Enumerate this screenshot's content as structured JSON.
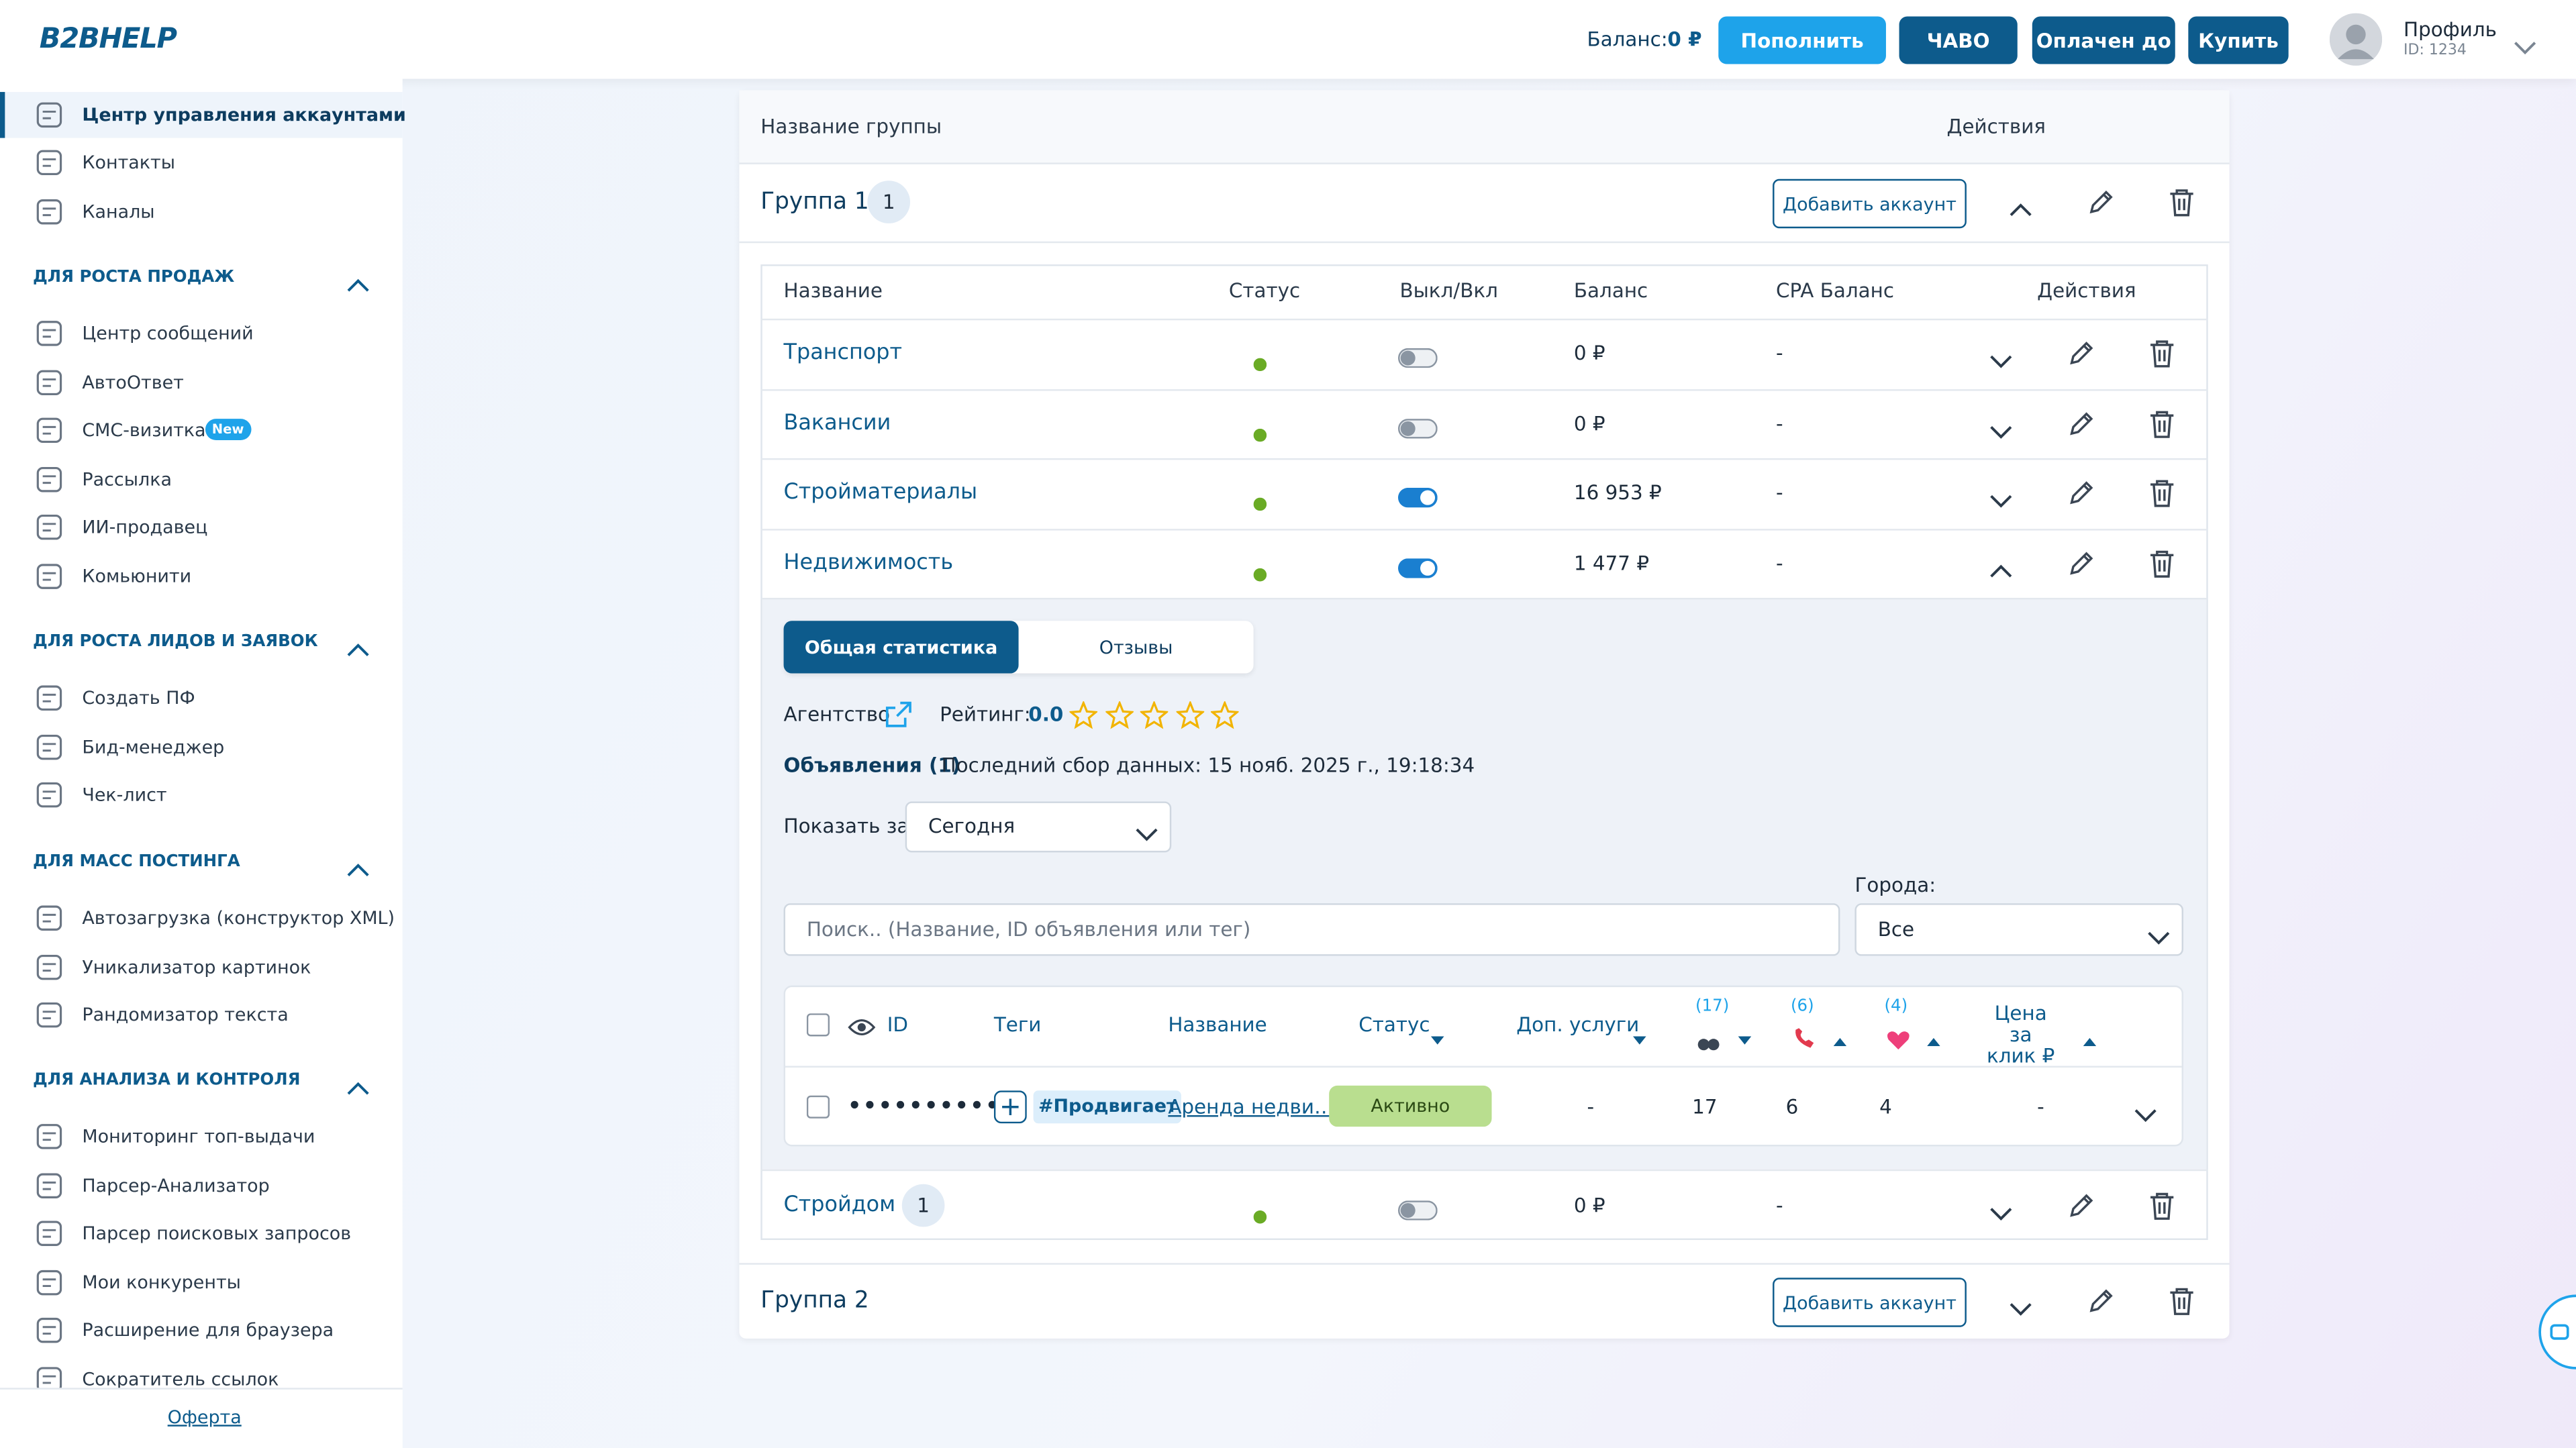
{
  "header": {
    "logo": "B2BHELP",
    "balance_label": "Баланс:",
    "balance_value": "0 ₽",
    "buttons": [
      "Пополнить",
      "ЧАВО",
      "Оплачен до",
      "Купить"
    ],
    "profile": "Профиль",
    "profile_id": "ID: 1234"
  },
  "sidebar": {
    "top_items": [
      "Центр управления аккаунтами",
      "Контакты",
      "Каналы"
    ],
    "sections": [
      {
        "title": "ДЛЯ РОСТА ПРОДАЖ",
        "items": [
          "Центр сообщений",
          "АвтоОтвет",
          "СМС-визитка",
          "Рассылка",
          "ИИ-продавец",
          "Комьюнити"
        ],
        "badge": "New"
      },
      {
        "title": "ДЛЯ РОСТА ЛИДОВ И ЗАЯВОК",
        "items": [
          "Создать ПФ",
          "Бид-менеджер",
          "Чек-лист"
        ]
      },
      {
        "title": "ДЛЯ МАСС ПОСТИНГА",
        "items": [
          "Автозагрузка (конструктор XML)",
          "Уникализатор картинок",
          "Рандомизатор текста"
        ]
      },
      {
        "title": "ДЛЯ АНАЛИЗА И КОНТРОЛЯ",
        "items": [
          "Мониторинг топ-выдачи",
          "Парсер-Анализатор",
          "Парсер поисковых запросов",
          "Мои конкуренты",
          "Расширение для браузера",
          "Сократитель ссылок"
        ]
      }
    ],
    "footer": "Оферта"
  },
  "groups": {
    "header": [
      "Название группы",
      "Действия"
    ],
    "add_button": "Добавить аккаунт",
    "list": [
      {
        "name": "Группа 1",
        "count": "1"
      },
      {
        "name": "Группа 2"
      }
    ]
  },
  "accounts": {
    "header": [
      "Название",
      "Статус",
      "Выкл/Вкл",
      "Баланс",
      "CPA Баланс",
      "Действия"
    ],
    "rows": [
      {
        "name": "Транспорт",
        "enabled": false,
        "balance": "0 ₽",
        "cpa": "-"
      },
      {
        "name": "Вакансии",
        "enabled": false,
        "balance": "0 ₽",
        "cpa": "-"
      },
      {
        "name": "Стройматериалы",
        "enabled": true,
        "balance": "16 953 ₽",
        "cpa": "-"
      },
      {
        "name": "Недвижимость",
        "enabled": true,
        "balance": "1 477 ₽",
        "cpa": "-"
      },
      {
        "name": "Стройдом",
        "count": "1",
        "enabled": false,
        "balance": "0 ₽",
        "cpa": "-"
      }
    ]
  },
  "details": {
    "tabs": [
      "Общая статистика",
      "Отзывы"
    ],
    "agency": "Агентство",
    "rating_label": "Рейтинг:",
    "rating": "0.0",
    "ads_label": "Объявления (1)",
    "last_collected": "Последний сбор данных: 15 нояб. 2025 г., 19:18:34",
    "period_label": "Показать за:",
    "period": "Сегодня",
    "search_placeholder": "Поиск.. (Название, ID объявления или тег)",
    "cities_label": "Города:",
    "cities": "Все",
    "ads_header": [
      "ID",
      "Теги",
      "Название",
      "Статус",
      "Доп. услуги",
      "(17)",
      "(6)",
      "(4)",
      "Цена за клик ₽"
    ],
    "ads_row": [
      "••••••••••",
      "#Продвигает",
      "Аренда недви…",
      "Активно",
      "-",
      "17",
      "6",
      "4",
      "-"
    ]
  }
}
